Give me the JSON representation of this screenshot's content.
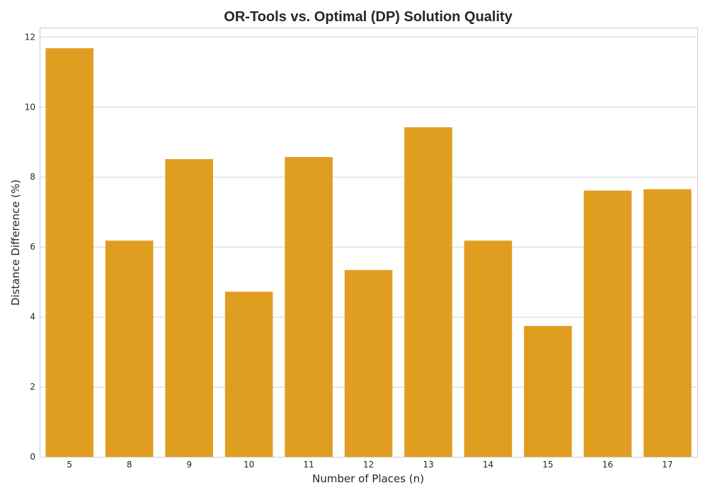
{
  "chart_data": {
    "type": "bar",
    "title": "OR-Tools vs. Optimal (DP) Solution Quality",
    "xlabel": "Number of Places (n)",
    "ylabel": "Distance Difference (%)",
    "categories": [
      "5",
      "8",
      "9",
      "10",
      "11",
      "12",
      "13",
      "14",
      "15",
      "16",
      "17"
    ],
    "values": [
      11.68,
      6.18,
      8.51,
      4.72,
      8.57,
      5.34,
      9.42,
      6.18,
      3.74,
      7.61,
      7.65
    ],
    "ylim": [
      0,
      12.25
    ],
    "yticks": [
      0,
      2,
      4,
      6,
      8,
      10,
      12
    ],
    "grid": "horizontal",
    "bar_color": "#e09e20"
  }
}
